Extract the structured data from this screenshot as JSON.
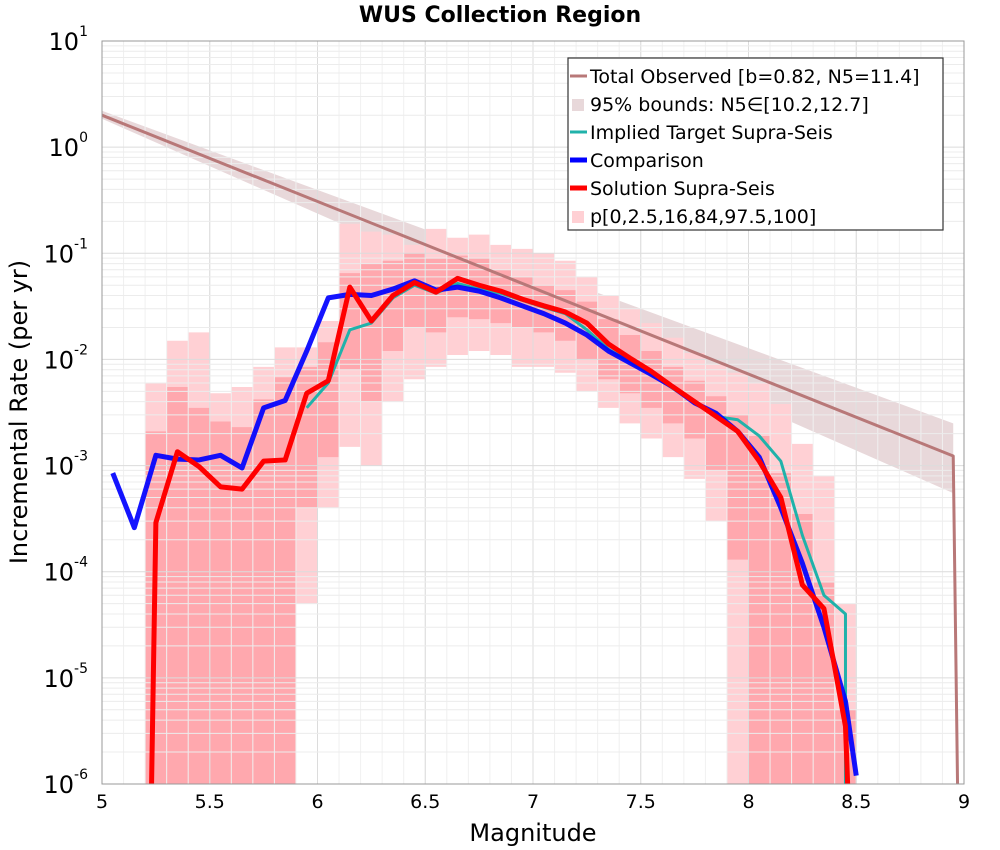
{
  "chart_data": {
    "type": "line",
    "title": "WUS Collection Region",
    "xlabel": "Magnitude",
    "ylabel": "Incremental Rate (per yr)",
    "x_ticks": [
      "5",
      "5.5",
      "6",
      "6.5",
      "7",
      "7.5",
      "8",
      "8.5",
      "9"
    ],
    "y_ticks": [
      {
        "base": "10",
        "exp": "-6"
      },
      {
        "base": "10",
        "exp": "-5"
      },
      {
        "base": "10",
        "exp": "-4"
      },
      {
        "base": "10",
        "exp": "-3"
      },
      {
        "base": "10",
        "exp": "-2"
      },
      {
        "base": "10",
        "exp": "-1"
      },
      {
        "base": "10",
        "exp": "0"
      },
      {
        "base": "10",
        "exp": "1"
      }
    ],
    "xlim": [
      5,
      9
    ],
    "ylim_log10": [
      -6,
      1
    ],
    "y_scale": "log",
    "grid": true,
    "legend_position": "top-right",
    "legend": [
      {
        "label": "Total Observed [b=0.82, N5=11.4]",
        "style": "line",
        "color": "#b87878"
      },
      {
        "label": "95% bounds: N5∈[10.2,12.7]",
        "style": "band",
        "color": "#e8d8da"
      },
      {
        "label": "Implied Target Supra-Seis",
        "style": "line",
        "color": "#20b2aa"
      },
      {
        "label": "Comparison",
        "style": "line",
        "color": "#0000ff"
      },
      {
        "label": "Solution Supra-Seis",
        "style": "line",
        "color": "#ff0000"
      },
      {
        "label": "p[0,2.5,16,84,97.5,100]",
        "style": "band",
        "color": "#ffd0d4"
      }
    ],
    "series": [
      {
        "name": "Total Observed [b=0.82, N5=11.4]",
        "color": "#b87878",
        "x": [
          5.0,
          8.95,
          8.97
        ],
        "y": [
          2.0,
          0.00123,
          1e-06
        ]
      },
      {
        "name": "95% bounds: N5∈[10.2,12.7]",
        "color": "#e8d8da",
        "x": [
          5.0,
          8.95
        ],
        "lower": [
          1.85,
          0.00055
        ],
        "upper": [
          2.2,
          0.0025
        ]
      },
      {
        "name": "Implied Target Supra-Seis",
        "color": "#20b2aa",
        "x": [
          5.95,
          6.05,
          6.15,
          6.25,
          6.35,
          6.45,
          6.55,
          6.65,
          6.75,
          6.85,
          6.95,
          7.05,
          7.15,
          7.25,
          7.35,
          7.45,
          7.55,
          7.65,
          7.75,
          7.85,
          7.95,
          8.05,
          8.15,
          8.25,
          8.35,
          8.45,
          8.45
        ],
        "y": [
          0.0035,
          0.006,
          0.019,
          0.022,
          0.038,
          0.05,
          0.042,
          0.052,
          0.046,
          0.042,
          0.036,
          0.031,
          0.027,
          0.019,
          0.0125,
          0.0095,
          0.0073,
          0.0053,
          0.0039,
          0.0029,
          0.0027,
          0.0019,
          0.0011,
          0.00022,
          6e-05,
          4e-05,
          1e-06
        ]
      },
      {
        "name": "Comparison",
        "color": "#0000ff",
        "x": [
          5.05,
          5.15,
          5.25,
          5.35,
          5.45,
          5.55,
          5.65,
          5.75,
          5.85,
          5.95,
          6.05,
          6.15,
          6.25,
          6.35,
          6.45,
          6.55,
          6.65,
          6.75,
          6.85,
          6.95,
          7.05,
          7.15,
          7.25,
          7.35,
          7.45,
          7.55,
          7.65,
          7.75,
          7.85,
          7.95,
          8.05,
          8.15,
          8.25,
          8.35,
          8.45,
          8.5
        ],
        "y": [
          0.00085,
          0.00026,
          0.00125,
          0.00115,
          0.00113,
          0.00125,
          0.00095,
          0.0035,
          0.0041,
          0.012,
          0.038,
          0.041,
          0.04,
          0.046,
          0.055,
          0.045,
          0.048,
          0.044,
          0.038,
          0.032,
          0.027,
          0.022,
          0.017,
          0.012,
          0.0093,
          0.0072,
          0.0055,
          0.0039,
          0.0031,
          0.0021,
          0.0012,
          0.0004,
          0.00012,
          3e-05,
          6e-06,
          1.2e-06
        ]
      },
      {
        "name": "Solution Supra-Seis",
        "color": "#ff0000",
        "x": [
          5.23,
          5.25,
          5.35,
          5.45,
          5.55,
          5.65,
          5.75,
          5.85,
          5.95,
          6.05,
          6.15,
          6.25,
          6.35,
          6.45,
          6.55,
          6.65,
          6.75,
          6.85,
          6.95,
          7.05,
          7.15,
          7.25,
          7.35,
          7.45,
          7.55,
          7.65,
          7.75,
          7.85,
          7.95,
          8.05,
          8.15,
          8.25,
          8.35,
          8.45,
          8.46
        ],
        "y": [
          1e-06,
          0.00029,
          0.00135,
          0.00098,
          0.00063,
          0.0006,
          0.0011,
          0.00113,
          0.0048,
          0.0063,
          0.048,
          0.023,
          0.04,
          0.053,
          0.043,
          0.058,
          0.05,
          0.044,
          0.037,
          0.032,
          0.028,
          0.022,
          0.014,
          0.0103,
          0.0077,
          0.0055,
          0.004,
          0.0029,
          0.0021,
          0.0011,
          0.0005,
          7.5e-05,
          4.5e-05,
          3.5e-06,
          1e-06
        ]
      },
      {
        "name": "p[0,2.5,16,84,97.5,100]",
        "color": "#ffd0d4",
        "x": [
          5.25,
          5.35,
          5.45,
          5.55,
          5.65,
          5.75,
          5.85,
          5.95,
          6.05,
          6.15,
          6.25,
          6.35,
          6.45,
          6.55,
          6.65,
          6.75,
          6.85,
          6.95,
          7.05,
          7.15,
          7.25,
          7.35,
          7.45,
          7.55,
          7.65,
          7.75,
          7.85,
          7.95,
          8.05,
          8.15,
          8.25,
          8.35,
          8.45
        ],
        "outer_lower": [
          1e-06,
          1e-06,
          1e-06,
          1e-06,
          1e-06,
          1e-06,
          2.2e-06,
          5e-05,
          0.0004,
          0.0015,
          0.001,
          0.004,
          0.0065,
          0.0085,
          0.011,
          0.012,
          0.011,
          0.0085,
          0.0085,
          0.0075,
          0.005,
          0.0035,
          0.0025,
          0.0018,
          0.0012,
          0.00075,
          0.0003,
          1e-06,
          1e-06,
          1e-06,
          1e-06,
          1e-06,
          1e-06
        ],
        "outer_upper": [
          0.006,
          0.015,
          0.018,
          0.0048,
          0.0055,
          0.0085,
          0.013,
          0.013,
          0.023,
          0.19,
          0.16,
          0.15,
          0.12,
          0.17,
          0.14,
          0.15,
          0.12,
          0.11,
          0.1,
          0.085,
          0.06,
          0.04,
          0.03,
          0.022,
          0.016,
          0.0115,
          0.009,
          0.0075,
          0.006,
          0.0038,
          0.0016,
          0.0008,
          5e-05
        ],
        "inner_lower": [
          1e-06,
          1e-06,
          1e-06,
          1e-06,
          1e-06,
          1e-06,
          1e-06,
          0.0004,
          0.0012,
          0.008,
          0.004,
          0.012,
          0.02,
          0.018,
          0.025,
          0.024,
          0.022,
          0.02,
          0.018,
          0.015,
          0.01,
          0.0065,
          0.0048,
          0.0035,
          0.0025,
          0.0018,
          0.0009,
          0.00013,
          1e-06,
          1e-06,
          1e-06,
          1e-06,
          1e-06
        ],
        "inner_upper": [
          0.0021,
          0.0055,
          0.0035,
          0.0026,
          0.0023,
          0.0042,
          0.0068,
          0.0085,
          0.0145,
          0.065,
          0.08,
          0.085,
          0.1,
          0.09,
          0.095,
          0.09,
          0.07,
          0.06,
          0.05,
          0.045,
          0.035,
          0.024,
          0.017,
          0.012,
          0.0085,
          0.0063,
          0.0045,
          0.003,
          0.0019,
          0.00085,
          0.00035,
          8e-05,
          5e-06
        ]
      }
    ]
  }
}
